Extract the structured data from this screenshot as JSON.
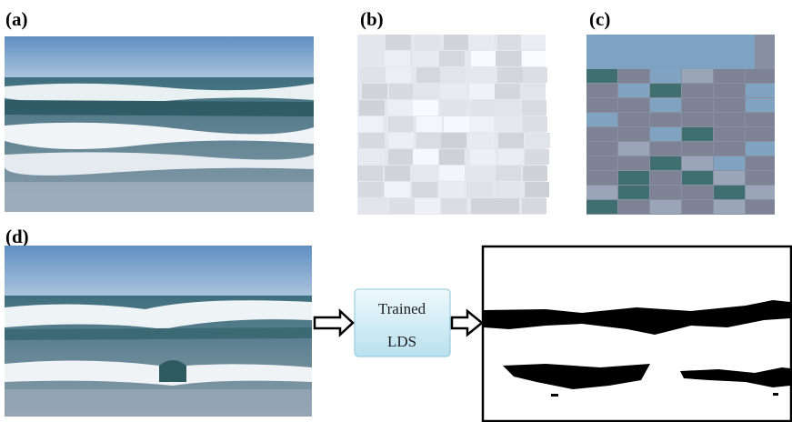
{
  "panels": [
    {
      "label": "(a)"
    },
    {
      "label": "(b)"
    },
    {
      "label": "(c)"
    },
    {
      "label": "(d)"
    }
  ],
  "model_box": {
    "lines": [
      "Trained",
      "LDS"
    ]
  }
}
